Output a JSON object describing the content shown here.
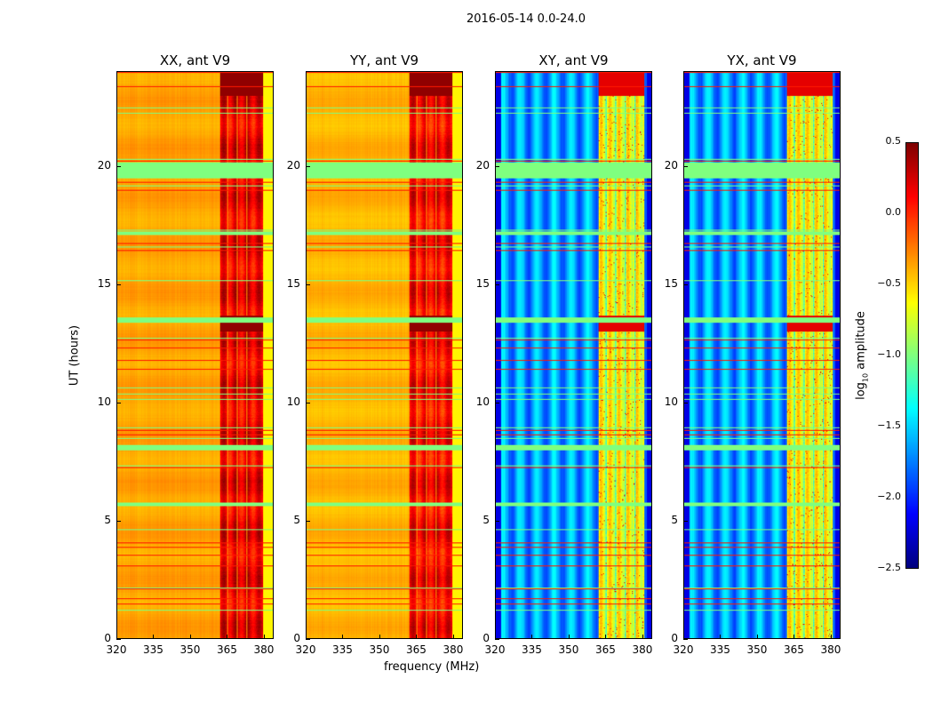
{
  "chart_data": {
    "type": "heatmap",
    "title": "2016-05-14 0.0-24.0",
    "xlabel": "frequency (MHz)",
    "ylabel": "UT (hours)",
    "xlim": [
      320,
      384
    ],
    "ylim": [
      0,
      24
    ],
    "xticks": [
      "320",
      "335",
      "350",
      "365",
      "380"
    ],
    "yticks": [
      "0",
      "5",
      "10",
      "15",
      "20"
    ],
    "panels": [
      {
        "title": "XX, ant V9",
        "pol": "XX",
        "base_level": -0.4,
        "band_level": 0.1
      },
      {
        "title": "YY, ant V9",
        "pol": "YY",
        "base_level": -0.45,
        "band_level": 0.05
      },
      {
        "title": "XY, ant V9",
        "pol": "XY",
        "base_level": -1.7,
        "band_level": -0.7
      },
      {
        "title": "YX, ant V9",
        "pol": "YX",
        "base_level": -1.7,
        "band_level": -0.7
      }
    ],
    "high_band_MHz": [
      362,
      381
    ],
    "flagged_ut_ranges": [
      [
        19.5,
        20.2
      ],
      [
        17.1,
        17.25
      ],
      [
        8.0,
        8.2
      ],
      [
        5.6,
        5.75
      ],
      [
        13.4,
        13.6
      ]
    ],
    "colorbar": {
      "label": "log10 amplitude",
      "label_main": "log",
      "label_sub": "10",
      "label_rest": " amplitude",
      "ticks": [
        "0.5",
        "0.0",
        "−0.5",
        "−1.0",
        "−1.5",
        "−2.0",
        "−2.5"
      ],
      "range": [
        -2.5,
        0.5
      ],
      "colormap": "jet"
    }
  }
}
